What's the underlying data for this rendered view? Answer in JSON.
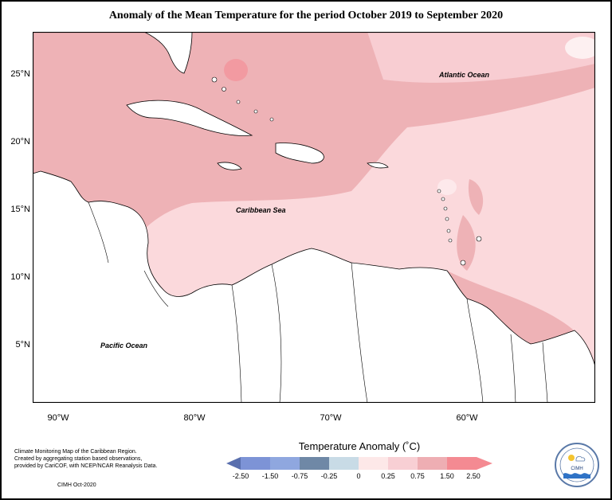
{
  "title": "Anomaly of the Mean Temperature for the period October 2019 to September 2020",
  "map": {
    "lat_labels": [
      "25°N",
      "20°N",
      "15°N",
      "10°N",
      "5°N"
    ],
    "lon_labels": [
      "90°W",
      "80°W",
      "70°W",
      "60°W"
    ],
    "ocean_labels": {
      "atlantic": "Atlantic Ocean",
      "caribbean": "Caribbean Sea",
      "pacific": "Pacific Ocean"
    }
  },
  "legend": {
    "title": "Temperature Anomaly (˚C)",
    "ticks": [
      "-2.50",
      "-1.50",
      "-0.75",
      "-0.25",
      "0",
      "0.25",
      "0.75",
      "1.50",
      "2.50"
    ],
    "colors": [
      "#5a6fae",
      "#7d93d6",
      "#8fa7df",
      "#6f88a6",
      "#c8dbe6",
      "#fde8e8",
      "#f8cfd4",
      "#eeaeb3",
      "#f48a92"
    ]
  },
  "credit": {
    "line1": "Climate Monitoring Map of the Caribbean Region.",
    "line2": "Created by aggregating station based observations,",
    "line3": "provided by CariCOF, with NCEP/NCAR Reanalysis Data.",
    "stamp": "CIMH Oct-2020"
  },
  "logo": {
    "text": "CIMH"
  }
}
